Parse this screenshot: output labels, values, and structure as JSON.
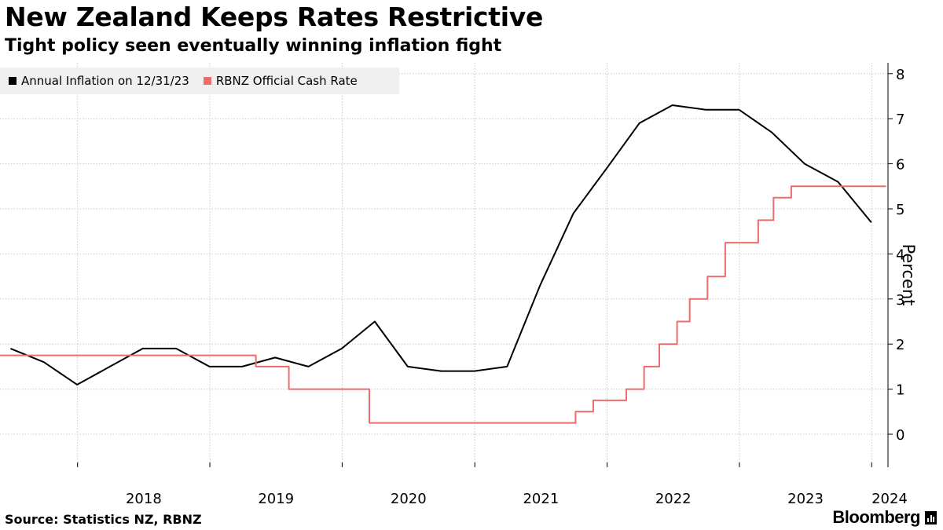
{
  "header": {
    "title": "New Zealand Keeps Rates Restrictive",
    "subtitle": "Tight policy seen eventually winning inflation fight"
  },
  "footer": {
    "source": "Source: Statistics NZ, RBNZ",
    "logo": "Bloomberg"
  },
  "chart_data": {
    "type": "line",
    "title": "New Zealand Keeps Rates Restrictive",
    "subtitle": "Tight policy seen eventually winning inflation fight",
    "ylabel": "Percent",
    "xlabel": "",
    "ylim": [
      -0.75,
      8.3
    ],
    "xlim": [
      "2017-06-01",
      "2024-02-15"
    ],
    "yticks": [
      0,
      1,
      2,
      3,
      4,
      5,
      6,
      7,
      8
    ],
    "y_axis_side": "right",
    "grid": true,
    "legend_position": "top-left",
    "xticks": [
      {
        "label": "2018",
        "date": "2018-01-01"
      },
      {
        "label": "2019",
        "date": "2019-01-01"
      },
      {
        "label": "2020",
        "date": "2020-01-01"
      },
      {
        "label": "2021",
        "date": "2021-01-01"
      },
      {
        "label": "2022",
        "date": "2022-01-01"
      },
      {
        "label": "2023",
        "date": "2023-01-01"
      },
      {
        "label": "2024",
        "date": "2024-01-01"
      }
    ],
    "series": [
      {
        "name": "Annual Inflation on 12/31/23",
        "color": "#000000",
        "step": false,
        "points": [
          [
            "2017-06-30",
            1.9
          ],
          [
            "2017-09-30",
            1.6
          ],
          [
            "2017-12-31",
            1.1
          ],
          [
            "2018-03-31",
            1.5
          ],
          [
            "2018-06-30",
            1.9
          ],
          [
            "2018-09-30",
            1.9
          ],
          [
            "2018-12-31",
            1.5
          ],
          [
            "2019-03-31",
            1.5
          ],
          [
            "2019-06-30",
            1.7
          ],
          [
            "2019-09-30",
            1.5
          ],
          [
            "2019-12-31",
            1.9
          ],
          [
            "2020-03-31",
            2.5
          ],
          [
            "2020-06-30",
            1.5
          ],
          [
            "2020-09-30",
            1.4
          ],
          [
            "2020-12-31",
            1.4
          ],
          [
            "2021-03-31",
            1.5
          ],
          [
            "2021-06-30",
            3.3
          ],
          [
            "2021-09-30",
            4.9
          ],
          [
            "2021-12-31",
            5.9
          ],
          [
            "2022-03-31",
            6.9
          ],
          [
            "2022-06-30",
            7.3
          ],
          [
            "2022-09-30",
            7.2
          ],
          [
            "2022-12-31",
            7.2
          ],
          [
            "2023-03-31",
            6.7
          ],
          [
            "2023-06-30",
            6.0
          ],
          [
            "2023-09-30",
            5.6
          ],
          [
            "2023-12-31",
            4.7
          ]
        ]
      },
      {
        "name": "RBNZ Official Cash Rate",
        "color": "#ef6b6b",
        "step": true,
        "points": [
          [
            "2017-06-01",
            1.75
          ],
          [
            "2019-05-08",
            1.5
          ],
          [
            "2019-08-07",
            1.0
          ],
          [
            "2020-03-16",
            0.25
          ],
          [
            "2021-10-06",
            0.5
          ],
          [
            "2021-11-24",
            0.75
          ],
          [
            "2022-02-23",
            1.0
          ],
          [
            "2022-04-13",
            1.5
          ],
          [
            "2022-05-25",
            2.0
          ],
          [
            "2022-07-13",
            2.5
          ],
          [
            "2022-08-17",
            3.0
          ],
          [
            "2022-10-05",
            3.5
          ],
          [
            "2022-11-23",
            4.25
          ],
          [
            "2023-02-22",
            4.75
          ],
          [
            "2023-04-05",
            5.25
          ],
          [
            "2023-05-24",
            5.5
          ],
          [
            "2024-02-10",
            5.5
          ]
        ]
      }
    ]
  }
}
